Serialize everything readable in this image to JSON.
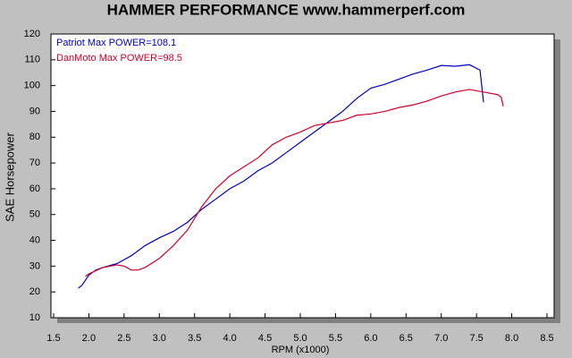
{
  "chart_data": {
    "type": "line",
    "title": "HAMMER PERFORMANCE www.hammerperf.com",
    "x_label": "RPM (x1000)",
    "y_label": "SAE Horsepower",
    "xlim": [
      1.5,
      8.5
    ],
    "ylim": [
      10,
      120
    ],
    "xticks": [
      1.5,
      {
        "value": 2,
        "label": "2.0"
      },
      2.5,
      {
        "value": 3,
        "label": "3.0"
      },
      3.5,
      {
        "value": 4,
        "label": "4.0"
      },
      4.5,
      {
        "value": 5,
        "label": "5.0"
      },
      5.5,
      {
        "value": 6,
        "label": "6.0"
      },
      6.5,
      {
        "value": 7,
        "label": "7.0"
      },
      7.5,
      {
        "value": 8,
        "label": "8.0"
      },
      8.5
    ],
    "yticks": [
      10,
      20,
      30,
      40,
      50,
      60,
      70,
      80,
      90,
      100,
      110,
      120
    ],
    "grid": false,
    "series": [
      {
        "name": "Patriot  Max POWER=108.1",
        "color": "#0000c0",
        "x": [
          1.85,
          1.9,
          2.0,
          2.1,
          2.2,
          2.4,
          2.6,
          2.8,
          3.0,
          3.2,
          3.4,
          3.6,
          3.8,
          4.0,
          4.2,
          4.4,
          4.6,
          4.8,
          5.0,
          5.2,
          5.4,
          5.6,
          5.8,
          6.0,
          6.2,
          6.4,
          6.6,
          6.8,
          7.0,
          7.2,
          7.4,
          7.55,
          7.6
        ],
        "values": [
          21.5,
          22.5,
          26.5,
          28.5,
          29.5,
          31,
          34,
          38,
          41,
          43.5,
          47,
          52,
          56,
          60,
          63,
          67,
          70,
          74,
          78,
          82,
          86,
          90,
          95,
          99,
          100.5,
          102.5,
          104.5,
          106,
          107.8,
          107.5,
          108.1,
          106,
          93.5
        ]
      },
      {
        "name": "DanMoto  Max POWER=98.5",
        "color": "#d0002a",
        "x": [
          1.95,
          2.0,
          2.2,
          2.4,
          2.5,
          2.6,
          2.7,
          2.8,
          3.0,
          3.2,
          3.4,
          3.6,
          3.8,
          4.0,
          4.2,
          4.4,
          4.6,
          4.8,
          5.0,
          5.2,
          5.4,
          5.6,
          5.8,
          6.0,
          6.2,
          6.4,
          6.6,
          6.8,
          7.0,
          7.2,
          7.4,
          7.6,
          7.8,
          7.85,
          7.88
        ],
        "values": [
          26,
          27,
          29.5,
          30.5,
          30,
          28.5,
          28.5,
          29.5,
          33,
          38,
          44,
          53,
          60,
          65,
          68.5,
          72,
          77,
          80,
          82,
          84.5,
          85.5,
          86.5,
          88.5,
          89,
          90,
          91.5,
          92.5,
          94,
          96,
          97.5,
          98.5,
          97.5,
          96.5,
          95.5,
          92
        ]
      }
    ]
  }
}
